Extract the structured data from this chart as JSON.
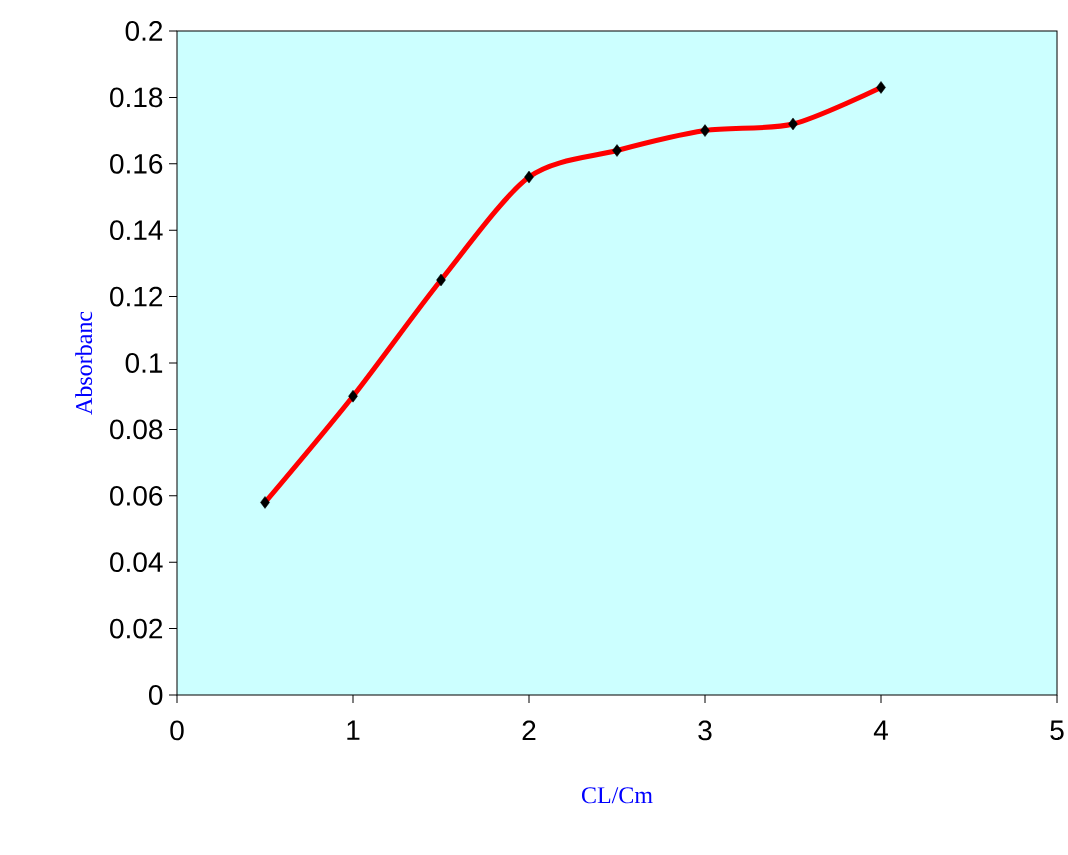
{
  "chart_data": {
    "type": "line",
    "xlabel": "CL/Cm",
    "ylabel": "Absorbanc",
    "x": [
      0.5,
      1,
      1.5,
      2,
      2.5,
      3,
      3.5,
      4
    ],
    "series": [
      {
        "color": "#ff0000",
        "values": [
          0.058,
          0.09,
          0.125,
          0.156,
          0.164,
          0.17,
          0.172,
          0.183
        ]
      }
    ],
    "xlim": [
      0,
      5
    ],
    "xticks": [
      0,
      1,
      2,
      3,
      4,
      5
    ],
    "ylim": [
      0,
      0.2
    ],
    "yticks": [
      0,
      0.02,
      0.04,
      0.06,
      0.08,
      0.1,
      0.12,
      0.14,
      0.16,
      0.18,
      0.2
    ],
    "marker": "diamond",
    "line_style": "solid"
  }
}
